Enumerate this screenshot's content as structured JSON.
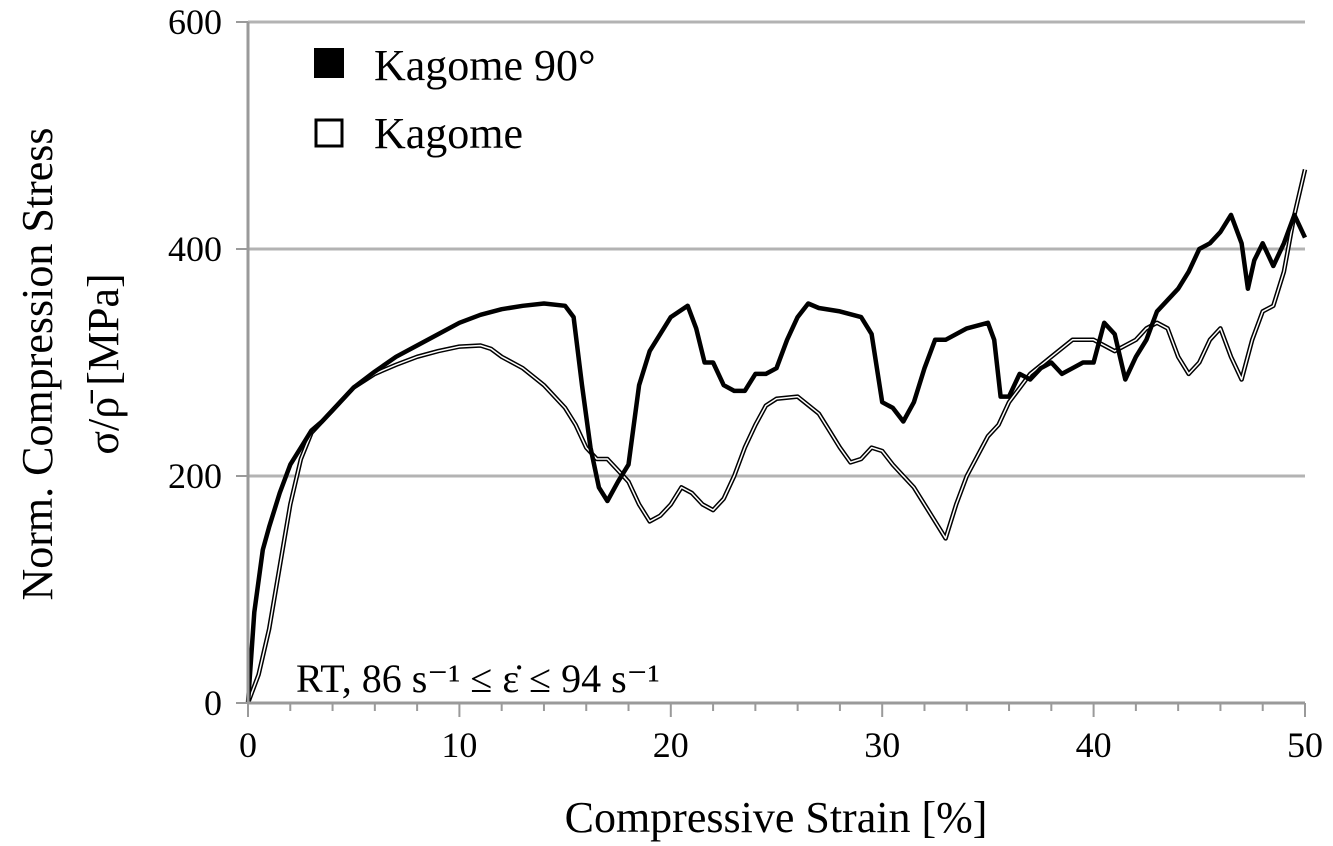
{
  "chart_data": {
    "type": "line",
    "xlabel": "Compressive Strain [%]",
    "ylabel_line1": "Norm. Compression Stress",
    "ylabel_line2": "σ/ρ̄ [MPa]",
    "xlim": [
      0,
      50
    ],
    "ylim": [
      0,
      600
    ],
    "x_ticks": [
      0,
      10,
      20,
      30,
      40,
      50
    ],
    "y_ticks": [
      0,
      200,
      400,
      600
    ],
    "x_tick_labels": [
      "0",
      "10",
      "20",
      "30",
      "40",
      "50"
    ],
    "y_tick_labels": [
      "0",
      "200",
      "400",
      "600"
    ],
    "grid": "horizontal",
    "legend_position": "top-left",
    "annotation": "RT, 86 s⁻¹ ≤ ε̇ ≤ 94 s⁻¹",
    "series": [
      {
        "name": "Kagome 90°",
        "marker": "filled-square",
        "color": "#000000",
        "x": [
          0,
          0.3,
          0.7,
          1,
          1.5,
          2,
          2.5,
          3,
          3.5,
          4,
          5,
          6,
          7,
          8,
          9,
          10,
          11,
          12,
          13,
          14,
          15,
          15.4,
          15.8,
          16.2,
          16.6,
          17,
          17.5,
          18,
          18.5,
          19,
          20,
          20.8,
          21.2,
          21.6,
          22,
          22.5,
          23,
          23.5,
          24,
          24.5,
          25,
          25.5,
          26,
          26.5,
          27,
          28,
          29,
          29.5,
          30,
          30.5,
          31,
          31.5,
          32,
          32.5,
          33,
          34,
          35,
          35.3,
          35.6,
          36,
          36.5,
          37,
          37.5,
          38,
          38.5,
          39,
          39.5,
          40,
          40.5,
          41,
          41.5,
          42,
          42.5,
          43,
          43.5,
          44,
          44.5,
          45,
          45.5,
          46,
          46.5,
          47,
          47.3,
          47.6,
          48,
          48.5,
          49,
          49.5,
          50
        ],
        "y": [
          0,
          80,
          135,
          155,
          185,
          210,
          225,
          240,
          248,
          258,
          278,
          292,
          305,
          315,
          325,
          335,
          342,
          347,
          350,
          352,
          350,
          340,
          280,
          225,
          190,
          178,
          195,
          210,
          280,
          310,
          340,
          350,
          330,
          300,
          300,
          280,
          275,
          275,
          290,
          290,
          295,
          320,
          340,
          352,
          348,
          345,
          340,
          325,
          265,
          260,
          248,
          265,
          295,
          320,
          320,
          330,
          335,
          320,
          270,
          270,
          290,
          285,
          295,
          300,
          290,
          295,
          300,
          300,
          335,
          325,
          285,
          305,
          320,
          345,
          355,
          365,
          380,
          400,
          405,
          415,
          430,
          405,
          365,
          390,
          405,
          385,
          405,
          430,
          410
        ]
      },
      {
        "name": "Kagome",
        "marker": "open-square",
        "color": "#000000",
        "x": [
          0,
          0.5,
          1,
          1.5,
          2,
          2.5,
          3,
          3.5,
          4,
          5,
          6,
          7,
          8,
          9,
          10,
          11,
          11.5,
          12,
          13,
          14,
          15,
          15.5,
          16,
          16.5,
          17,
          17.5,
          18,
          18.5,
          19,
          19.5,
          20,
          20.5,
          21,
          21.5,
          22,
          22.5,
          23,
          23.5,
          24,
          24.5,
          25,
          26,
          27,
          27.5,
          28,
          28.5,
          29,
          29.5,
          30,
          30.5,
          31,
          31.5,
          32,
          32.5,
          33,
          33.5,
          34,
          35,
          35.5,
          36,
          37,
          38,
          39,
          40,
          40.5,
          41,
          42,
          42.5,
          43,
          43.5,
          44,
          44.5,
          45,
          45.5,
          46,
          46.5,
          47,
          47.5,
          48,
          48.5,
          49,
          49.5,
          50
        ],
        "y": [
          0,
          25,
          65,
          120,
          175,
          215,
          238,
          248,
          258,
          278,
          290,
          298,
          305,
          310,
          314,
          315,
          312,
          305,
          295,
          280,
          260,
          245,
          225,
          215,
          215,
          205,
          195,
          175,
          160,
          165,
          175,
          190,
          185,
          175,
          170,
          180,
          200,
          225,
          245,
          262,
          268,
          270,
          255,
          240,
          225,
          212,
          215,
          225,
          222,
          210,
          200,
          190,
          175,
          160,
          145,
          175,
          200,
          235,
          245,
          265,
          290,
          305,
          320,
          320,
          315,
          310,
          320,
          330,
          335,
          330,
          305,
          290,
          300,
          320,
          330,
          305,
          285,
          320,
          345,
          350,
          380,
          430,
          470
        ]
      }
    ]
  }
}
